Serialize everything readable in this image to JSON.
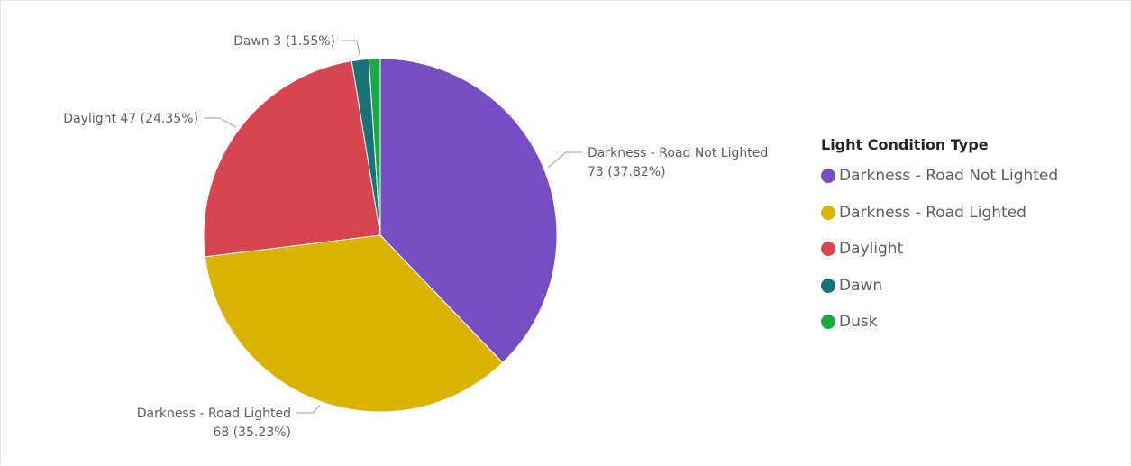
{
  "chart_data": {
    "type": "pie",
    "legend_title": "Light Condition Type",
    "legend_position": "right",
    "slices": [
      {
        "name": "Darkness - Road Not Lighted",
        "value": 73,
        "percent": "37.82%",
        "color": "#744ec2"
      },
      {
        "name": "Darkness - Road Lighted",
        "value": 68,
        "percent": "35.23%",
        "color": "#d9b300"
      },
      {
        "name": "Daylight",
        "value": 47,
        "percent": "24.35%",
        "color": "#d64550"
      },
      {
        "name": "Dawn",
        "value": 3,
        "percent": "1.55%",
        "color": "#197278"
      },
      {
        "name": "Dusk",
        "value": 2,
        "percent": "",
        "color": "#1aab40"
      }
    ],
    "data_labels": [
      {
        "series": "Darkness - Road Not Lighted",
        "lines": [
          "Darkness - Road Not Lighted",
          "73 (37.82%)"
        ]
      },
      {
        "series": "Darkness - Road Lighted",
        "lines": [
          "Darkness - Road Lighted",
          "68 (35.23%)"
        ]
      },
      {
        "series": "Daylight",
        "lines": [
          "Daylight 47 (24.35%)"
        ]
      },
      {
        "series": "Dawn",
        "lines": [
          "Dawn 3 (1.55%)"
        ]
      }
    ]
  }
}
